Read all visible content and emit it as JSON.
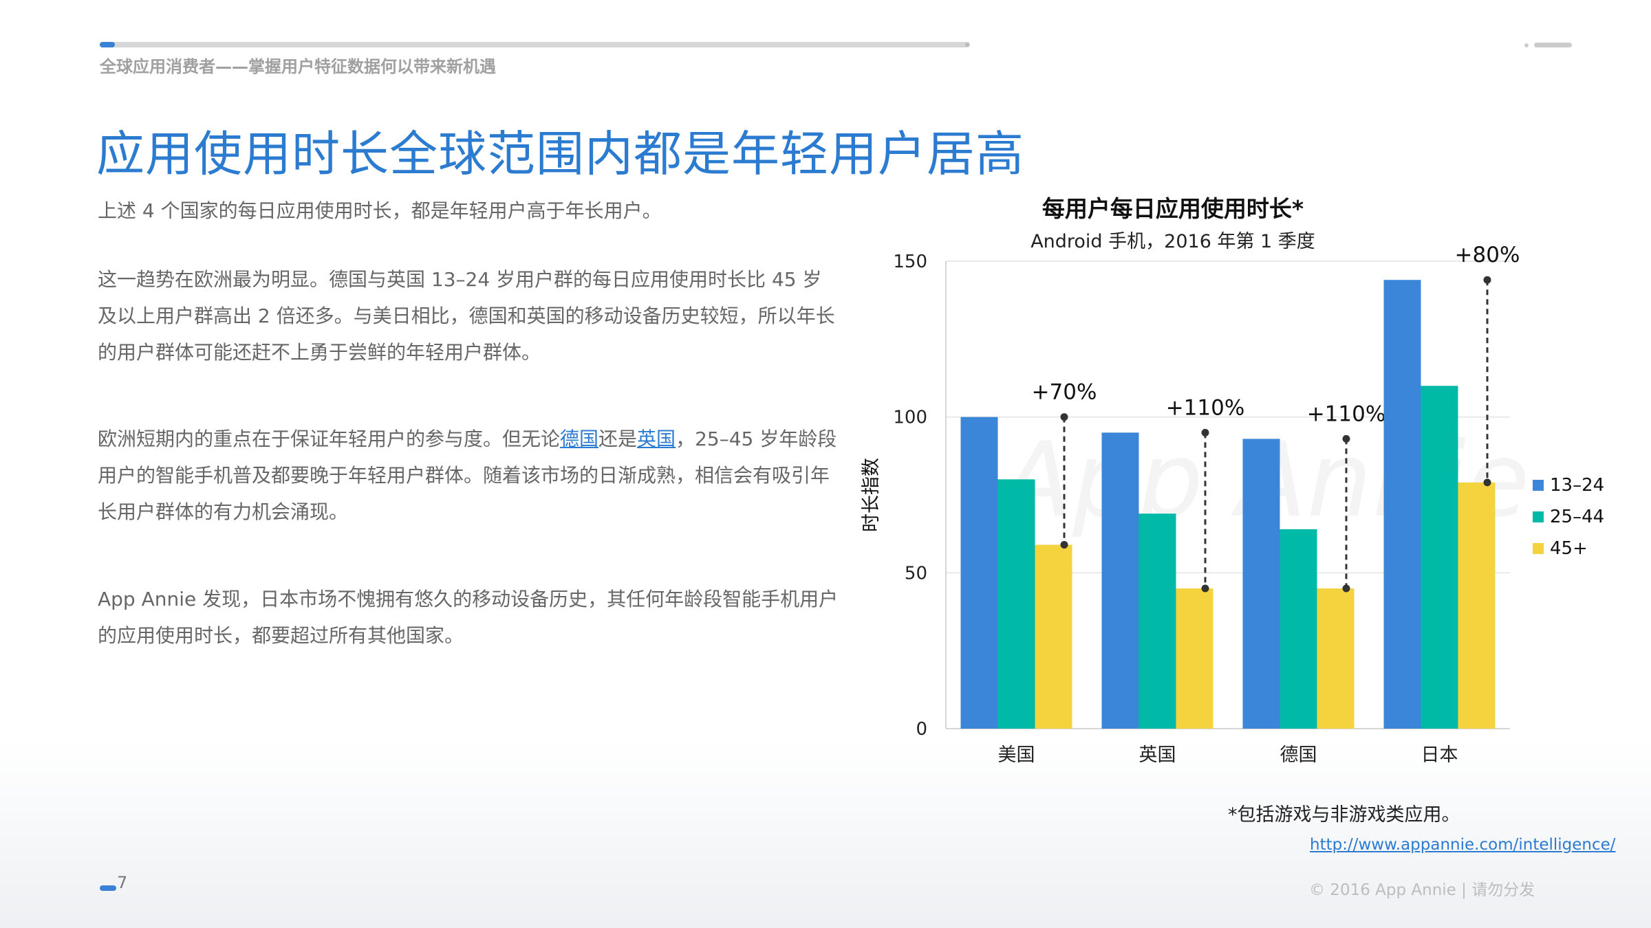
{
  "header": {
    "subtitle": "全球应用消费者——掌握用户特征数据何以带来新机遇",
    "title": "应用使用时长全球范围内都是年轻用户居高"
  },
  "body": {
    "p1": "上述 4 个国家的每日应用使用时长，都是年轻用户高于年长用户。",
    "p2": "这一趋势在欧洲最为明显。德国与英国 13–24 岁用户群的每日应用使用时长比 45 岁及以上用户群高出 2 倍还多。与美日相比，德国和英国的移动设备历史较短，所以年长的用户群体可能还赶不上勇于尝鲜的年轻用户群体。",
    "p3_a": "欧洲短期内的重点在于保证年轻用户的参与度。但无论",
    "p3_link1": "德国",
    "p3_b": "还是",
    "p3_link2": "英国",
    "p3_c": "，25–45 岁年龄段用户的智能手机普及都要晚于年轻用户群体。随着该市场的日渐成熟，相信会有吸引年长用户群体的有力机会涌现。",
    "p4": "App Annie 发现，日本市场不愧拥有悠久的移动设备历史，其任何年龄段智能手机用户的应用使用时长，都要超过所有其他国家。"
  },
  "footer": {
    "page_number": "7",
    "copyright": "© 2016 App Annie | 请勿分发",
    "footnote": "*包括游戏与非游戏类应用。",
    "url": "http://www.appannie.com/intelligence/"
  },
  "chart_data": {
    "type": "bar",
    "title": "每用户每日应用使用时长*",
    "subtitle": "Android 手机，2016 年第 1 季度",
    "ylabel": "时长指数",
    "xlabel": "",
    "ylim": [
      0,
      150
    ],
    "yticks": [
      0,
      50,
      100,
      150
    ],
    "grid": true,
    "legend_position": "right",
    "watermark": "App Annie",
    "categories": [
      "美国",
      "英国",
      "德国",
      "日本"
    ],
    "series": [
      {
        "name": "13–24",
        "color": "#3b86d8",
        "values": [
          100,
          95,
          93,
          144
        ]
      },
      {
        "name": "25–44",
        "color": "#00b9a6",
        "values": [
          80,
          69,
          64,
          110
        ]
      },
      {
        "name": "45+",
        "color": "#f5d33f",
        "values": [
          59,
          45,
          45,
          79
        ]
      }
    ],
    "annotations": [
      "+70%",
      "+110%",
      "+110%",
      "+80%"
    ]
  }
}
